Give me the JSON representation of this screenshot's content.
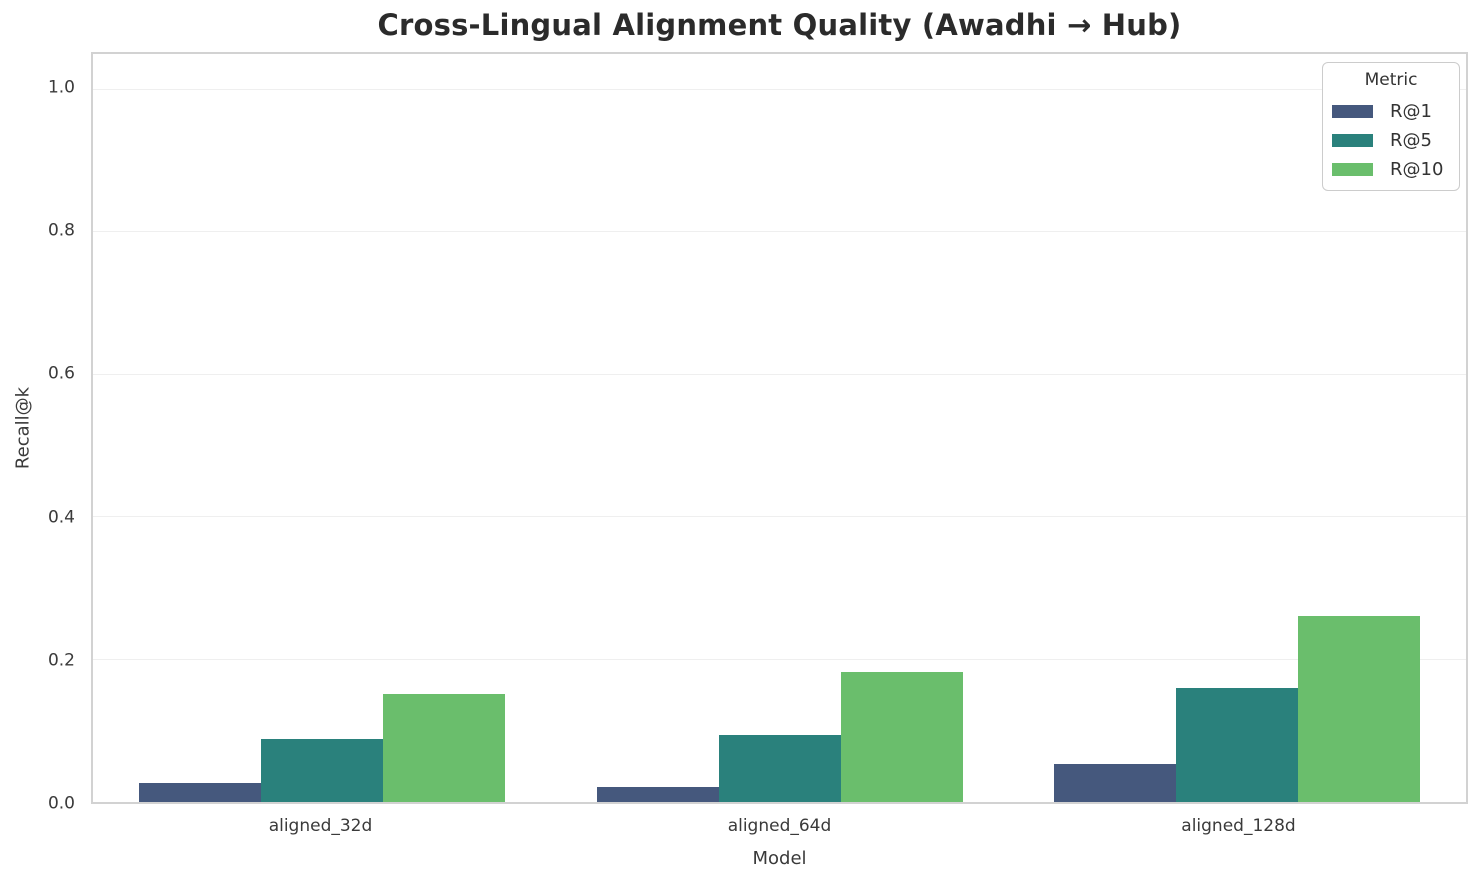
{
  "chart_data": {
    "type": "bar",
    "title": "Cross-Lingual Alignment Quality (Awadhi → Hub)",
    "xlabel": "Model",
    "ylabel": "Recall@k",
    "legend_title": "Metric",
    "legend_position": "upper right",
    "grid": true,
    "categories": [
      "aligned_32d",
      "aligned_64d",
      "aligned_128d"
    ],
    "series": [
      {
        "name": "R@1",
        "color": "#45587D",
        "values": [
          0.026,
          0.021,
          0.054
        ]
      },
      {
        "name": "R@5",
        "color": "#2A817C",
        "values": [
          0.089,
          0.094,
          0.16
        ]
      },
      {
        "name": "R@10",
        "color": "#6ABE6C",
        "values": [
          0.152,
          0.182,
          0.261
        ]
      }
    ],
    "y_ticks": [
      0.0,
      0.2,
      0.4,
      0.6,
      0.8,
      1.0
    ],
    "y_tick_labels": [
      "0.0",
      "0.2",
      "0.4",
      "0.6",
      "0.8",
      "1.0"
    ],
    "ylim": [
      0,
      1.05
    ]
  },
  "colors": {
    "spine": "#d2d2d2",
    "gridline": "#efefef",
    "title_text": "#2b2b2b",
    "axis_text": "#3a3a3a"
  }
}
